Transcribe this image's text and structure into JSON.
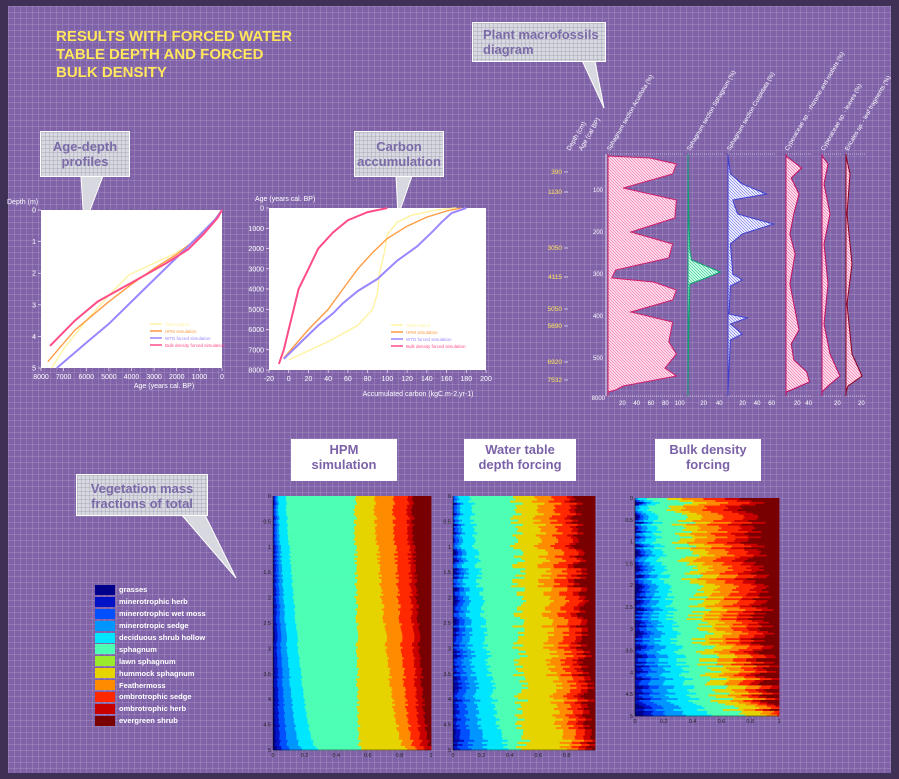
{
  "title": "RESULTS WITH FORCED WATER\nTABLE DEPTH AND FORCED\nBULK DENSITY",
  "callouts": {
    "macro": "Plant macrofossils\ndiagram",
    "age": "Age-depth\nprofiles",
    "carbon": "Carbon\naccumulation",
    "veg": "Vegetation mass\nfractions of total",
    "hpm": "HPM\nsimulation",
    "wtd": "Water table\ndepth forcing",
    "bulk": "Bulk density\nforcing"
  },
  "colors": {
    "observation": "#fff2a0",
    "hpm": "#ff9b42",
    "wtd": "#9a86ff",
    "bulk": "#ff4d86"
  },
  "chart_data": [
    {
      "type": "line",
      "xlabel": "Age (years cal. BP)",
      "ylabel": "Depth (m)",
      "xlim": [
        8000,
        0
      ],
      "ylim": [
        5,
        0
      ],
      "x_ticks": [
        "8000",
        "7000",
        "6000",
        "5000",
        "4000",
        "3000",
        "2000",
        "1000",
        "0"
      ],
      "y_ticks": [
        "0",
        "1",
        "2",
        "3",
        "4",
        "5"
      ],
      "series": [
        {
          "name": "Observation",
          "points": [
            [
              7532,
              5
            ],
            [
              7000,
              4.4
            ],
            [
              6000,
              3.5
            ],
            [
              5000,
              2.7
            ],
            [
              4115,
              2.05
            ],
            [
              3050,
              1.7
            ],
            [
              2000,
              1.35
            ],
            [
              1130,
              0.95
            ],
            [
              390,
              0.35
            ],
            [
              0,
              0
            ]
          ]
        },
        {
          "name": "HPM simulation",
          "points": [
            [
              7700,
              4.8
            ],
            [
              6500,
              3.8
            ],
            [
              5000,
              2.9
            ],
            [
              4000,
              2.35
            ],
            [
              3000,
              1.85
            ],
            [
              2000,
              1.4
            ],
            [
              1000,
              0.85
            ],
            [
              400,
              0.4
            ],
            [
              0,
              0
            ]
          ]
        },
        {
          "name": "WTD forced simulation",
          "points": [
            [
              7300,
              5
            ],
            [
              6000,
              4.2
            ],
            [
              5000,
              3.6
            ],
            [
              4000,
              2.9
            ],
            [
              3000,
              2.2
            ],
            [
              2000,
              1.5
            ],
            [
              1000,
              0.8
            ],
            [
              300,
              0.3
            ],
            [
              0,
              0
            ]
          ]
        },
        {
          "name": "Bulk density forced simulation",
          "points": [
            [
              7600,
              4.3
            ],
            [
              6500,
              3.5
            ],
            [
              5500,
              2.9
            ],
            [
              4500,
              2.5
            ],
            [
              3500,
              2.1
            ],
            [
              2500,
              1.7
            ],
            [
              1500,
              1.25
            ],
            [
              800,
              0.75
            ],
            [
              200,
              0.25
            ],
            [
              0,
              0
            ]
          ]
        }
      ]
    },
    {
      "type": "line",
      "xlabel": "Accumulated carbon (kgC.m-2.yr-1)",
      "ylabel": "Age (years cal. BP)",
      "xlim": [
        -20,
        200
      ],
      "ylim": [
        8000,
        0
      ],
      "x_ticks": [
        "-20",
        "0",
        "20",
        "40",
        "60",
        "80",
        "100",
        "120",
        "140",
        "160",
        "180",
        "200"
      ],
      "y_ticks": [
        "0",
        "1000",
        "2000",
        "3000",
        "4000",
        "5000",
        "6000",
        "7000",
        "8000"
      ],
      "series": [
        {
          "name": "Observation",
          "points": [
            [
              0,
              7500
            ],
            [
              40,
              6600
            ],
            [
              70,
              5800
            ],
            [
              85,
              5000
            ],
            [
              90,
              4200
            ],
            [
              92,
              3200
            ],
            [
              97,
              2200
            ],
            [
              100,
              1300
            ],
            [
              110,
              700
            ],
            [
              125,
              350
            ],
            [
              150,
              100
            ],
            [
              170,
              0
            ]
          ]
        },
        {
          "name": "HPM simulation",
          "points": [
            [
              -5,
              7400
            ],
            [
              20,
              6000
            ],
            [
              40,
              5000
            ],
            [
              55,
              4000
            ],
            [
              70,
              3000
            ],
            [
              85,
              2200
            ],
            [
              100,
              1500
            ],
            [
              120,
              900
            ],
            [
              140,
              450
            ],
            [
              160,
              150
            ],
            [
              175,
              0
            ]
          ]
        },
        {
          "name": "WTD forced simulation",
          "points": [
            [
              -5,
              7450
            ],
            [
              15,
              6500
            ],
            [
              30,
              5800
            ],
            [
              45,
              5200
            ],
            [
              55,
              4700
            ],
            [
              70,
              4100
            ],
            [
              90,
              3500
            ],
            [
              110,
              2600
            ],
            [
              130,
              1900
            ],
            [
              145,
              1200
            ],
            [
              155,
              700
            ],
            [
              165,
              250
            ],
            [
              180,
              0
            ]
          ]
        },
        {
          "name": "Bulk density forced simulation",
          "points": [
            [
              -10,
              7700
            ],
            [
              -5,
              7000
            ],
            [
              0,
              6000
            ],
            [
              5,
              5000
            ],
            [
              10,
              4000
            ],
            [
              20,
              3000
            ],
            [
              30,
              2000
            ],
            [
              45,
              1200
            ],
            [
              60,
              600
            ],
            [
              80,
              200
            ],
            [
              100,
              0
            ]
          ]
        }
      ]
    },
    {
      "type": "area",
      "ylabel": "Depth (cm)",
      "y2label": "Age (cal BP)",
      "depth_ticks": [
        "100",
        "200",
        "300",
        "400",
        "500"
      ],
      "age_ticks": [
        "390",
        "1130",
        "3050",
        "4115",
        "5050",
        "5690",
        "6920",
        "7532"
      ],
      "age_axis_bottom": "8000",
      "series": [
        {
          "name": "Sphagnum section Acutifolia (%)",
          "x_ticks": [
            "20",
            "40",
            "60",
            "80",
            "100"
          ]
        },
        {
          "name": "Sphagnum section Sphagnum (%)",
          "x_ticks": [
            "20",
            "40"
          ]
        },
        {
          "name": "Sphagnum section Cuspidata (%)",
          "x_ticks": [
            "20",
            "40",
            "60"
          ]
        },
        {
          "name": "Cyperaceae sp. - rhizome and rootlets (%)",
          "x_ticks": [
            "20",
            "40"
          ]
        },
        {
          "name": "Cyperaceae sp. - leaves (%)",
          "x_ticks": [
            "20"
          ]
        },
        {
          "name": "Ericales sp. - leaf fragments (%)",
          "x_ticks": [
            "20"
          ]
        }
      ]
    },
    {
      "type": "area",
      "name": "HPM simulation",
      "x_ticks": [
        "0",
        "0.2",
        "0.4",
        "0.6",
        "0.8",
        "1"
      ],
      "y_ticks": [
        "0",
        "0.5",
        "1",
        "1.5",
        "2",
        "2.5",
        "3",
        "3.5",
        "4",
        "4.5",
        "5"
      ],
      "boundaries": [
        [
          0.02,
          0.0
        ],
        [
          0.05,
          0.01
        ],
        [
          0.1,
          0.02
        ],
        [
          0.18,
          0.03
        ],
        [
          0.28,
          0.08
        ],
        [
          0.55,
          0.52
        ],
        [
          0.55,
          0.52
        ],
        [
          0.84,
          0.64
        ],
        [
          0.9,
          0.76
        ],
        [
          0.95,
          0.85
        ],
        [
          1.0,
          0.88
        ]
      ]
    },
    {
      "type": "area",
      "name": "Water table depth forcing",
      "x_ticks": [
        "0",
        "0.2",
        "0.4",
        "0.6",
        "0.8"
      ],
      "y_ticks": [
        "0",
        "0.5",
        "1",
        "1.5",
        "2",
        "2.5",
        "3",
        "3.5",
        "4",
        "4.5",
        "5"
      ],
      "boundaries": [
        [
          0.02,
          0.0
        ],
        [
          0.06,
          0.01
        ],
        [
          0.14,
          0.03
        ],
        [
          0.25,
          0.05
        ],
        [
          0.4,
          0.13
        ],
        [
          0.5,
          0.45
        ],
        [
          0.5,
          0.45
        ],
        [
          0.82,
          0.6
        ],
        [
          0.9,
          0.72
        ],
        [
          0.95,
          0.83
        ],
        [
          1.0,
          0.87
        ]
      ]
    },
    {
      "type": "area",
      "name": "Bulk density forcing",
      "x_ticks": [
        "0",
        "0.2",
        "0.4",
        "0.6",
        "0.8",
        "1"
      ],
      "y_ticks": [
        "0",
        "0.5",
        "1",
        "1.5",
        "2",
        "2.5",
        "3",
        "3.5",
        "4",
        "4.5",
        "5"
      ],
      "boundaries": [
        [
          0.03,
          0.0
        ],
        [
          0.09,
          0.01
        ],
        [
          0.18,
          0.03
        ],
        [
          0.32,
          0.06
        ],
        [
          0.5,
          0.12
        ],
        [
          0.7,
          0.3
        ],
        [
          0.7,
          0.3
        ],
        [
          0.85,
          0.4
        ],
        [
          0.92,
          0.55
        ],
        [
          0.96,
          0.7
        ],
        [
          1.0,
          0.8
        ]
      ]
    }
  ],
  "vegetation_legend": [
    {
      "label": "grasses",
      "color": "#00008b"
    },
    {
      "label": "minerotrophic herb",
      "color": "#0012c8"
    },
    {
      "label": "minerotrophic wet moss",
      "color": "#0050ff"
    },
    {
      "label": "minerotropic sedge",
      "color": "#0096ff"
    },
    {
      "label": "deciduous shrub hollow",
      "color": "#00e6ff"
    },
    {
      "label": "sphagnum",
      "color": "#4dffb4"
    },
    {
      "label": "lawn sphagnum",
      "color": "#9aeb2c"
    },
    {
      "label": "hummock sphagnum",
      "color": "#e6d400"
    },
    {
      "label": "Feathermoss",
      "color": "#ff8c00"
    },
    {
      "label": "ombrotrophic sedge",
      "color": "#ff2800"
    },
    {
      "label": "ombrotrophic herb",
      "color": "#c80000"
    },
    {
      "label": "evergreen shrub",
      "color": "#780000"
    }
  ]
}
